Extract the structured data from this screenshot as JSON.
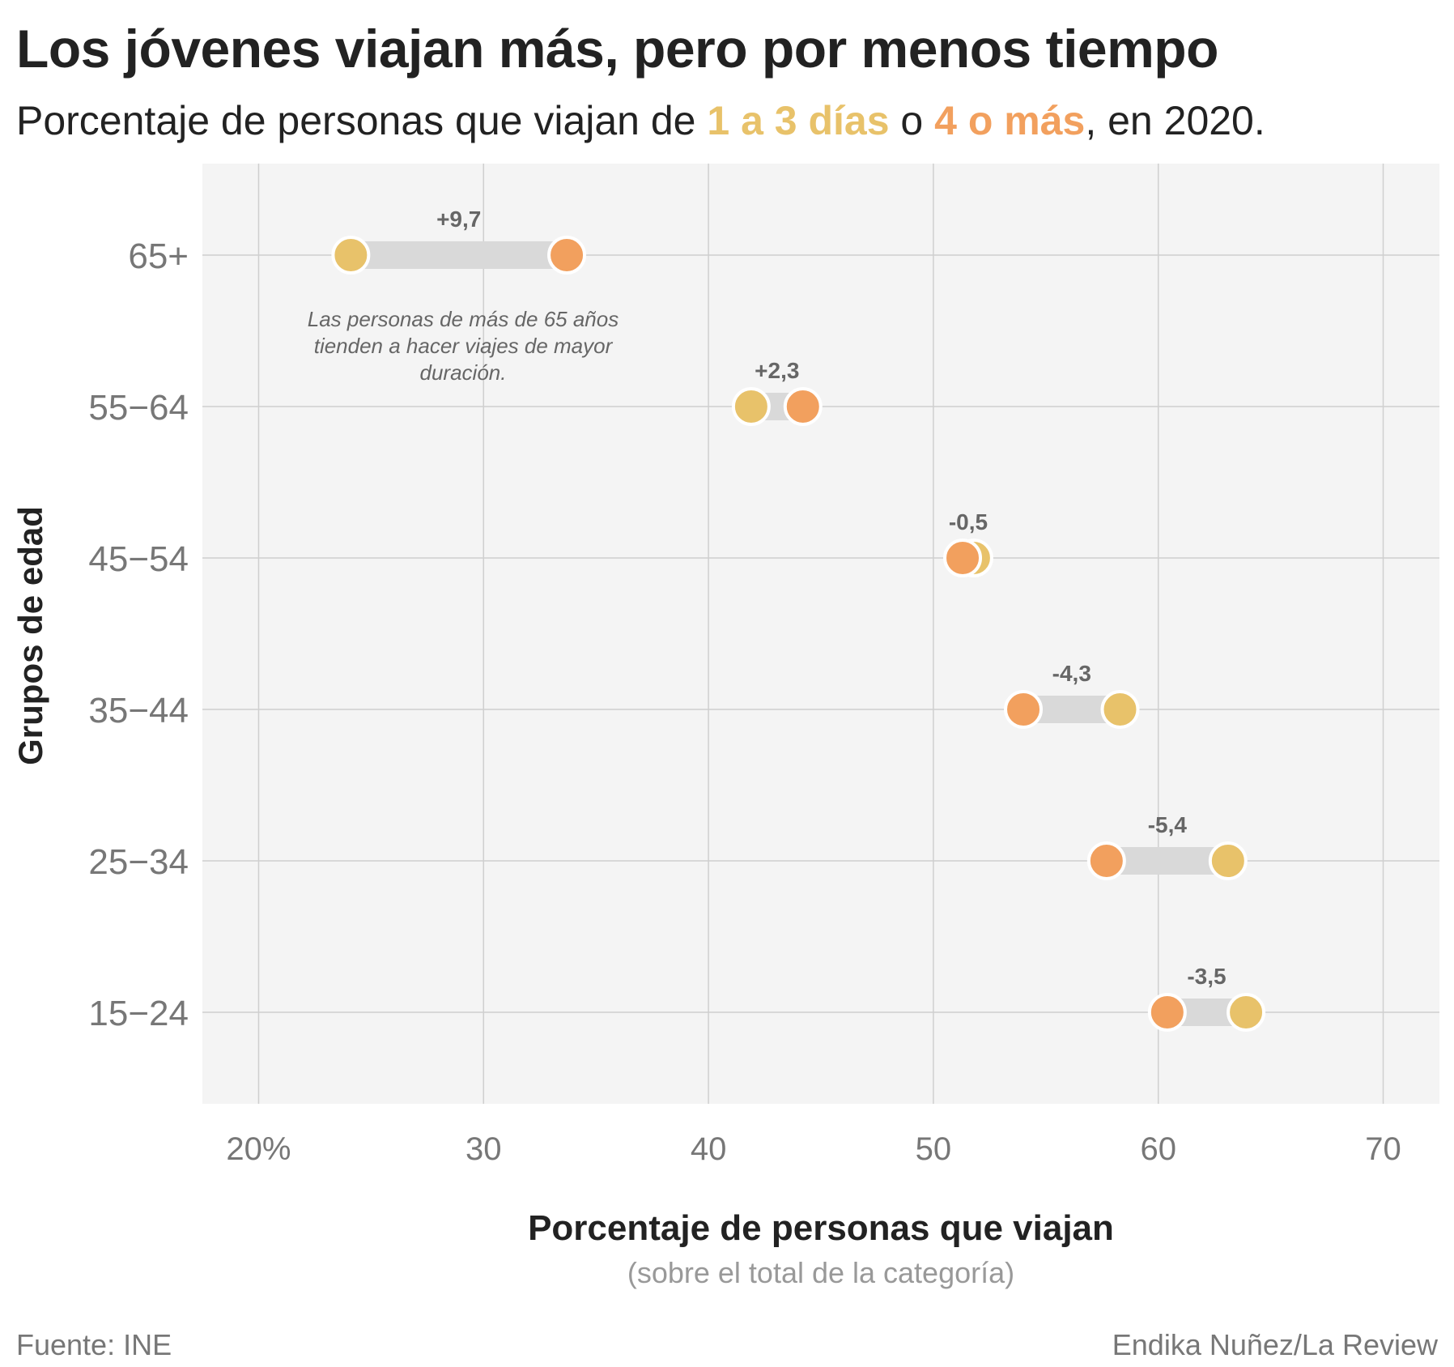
{
  "title": "Los jóvenes viajan más, pero por menos tiempo",
  "subtitle": {
    "prefix": "Porcentaje de personas que viajan de ",
    "series1": "1 a 3 días",
    "middle": " o ",
    "series2": "4 o más",
    "suffix": ", en 2020."
  },
  "colors": {
    "short_trip": "#E8C26A",
    "long_trip": "#F2A05E",
    "connector": "#D9D9D9",
    "plot_background": "#F4F4F4",
    "grid": "#CFCFCF",
    "axis_text": "#777777",
    "annotation_text": "#666666"
  },
  "chart_data": {
    "type": "dumbbell",
    "xlabel": "Porcentaje de personas que viajan",
    "xlabel_note": "(sobre el total de la categoría)",
    "ylabel": "Grupos de edad",
    "xlim": [
      17.5,
      72.5
    ],
    "x_ticks": [
      20,
      30,
      40,
      50,
      60,
      70
    ],
    "x_tick_labels": [
      "20%",
      "30",
      "40",
      "50",
      "60",
      "70"
    ],
    "grid": true,
    "series": [
      {
        "name": "1 a 3 días",
        "color_key": "short_trip"
      },
      {
        "name": "4 o más",
        "color_key": "long_trip"
      }
    ],
    "rows": [
      {
        "category": "65+",
        "short": 24.1,
        "long": 33.7,
        "diff": "+9,7"
      },
      {
        "category": "55−64",
        "short": 41.9,
        "long": 44.2,
        "diff": "+2,3"
      },
      {
        "category": "45−54",
        "short": 51.8,
        "long": 51.3,
        "diff": "-0,5"
      },
      {
        "category": "35−44",
        "short": 58.3,
        "long": 54.0,
        "diff": "-4,3"
      },
      {
        "category": "25−34",
        "short": 63.1,
        "long": 57.7,
        "diff": "-5,4"
      },
      {
        "category": "15−24",
        "short": 63.9,
        "long": 60.4,
        "diff": "-3,5"
      }
    ],
    "annotation": "Las personas de más de 65 años tienden a hacer viajes de mayor duración."
  },
  "footer": {
    "source": "Fuente: INE",
    "credit": "Endika Nuñez/La Review"
  }
}
